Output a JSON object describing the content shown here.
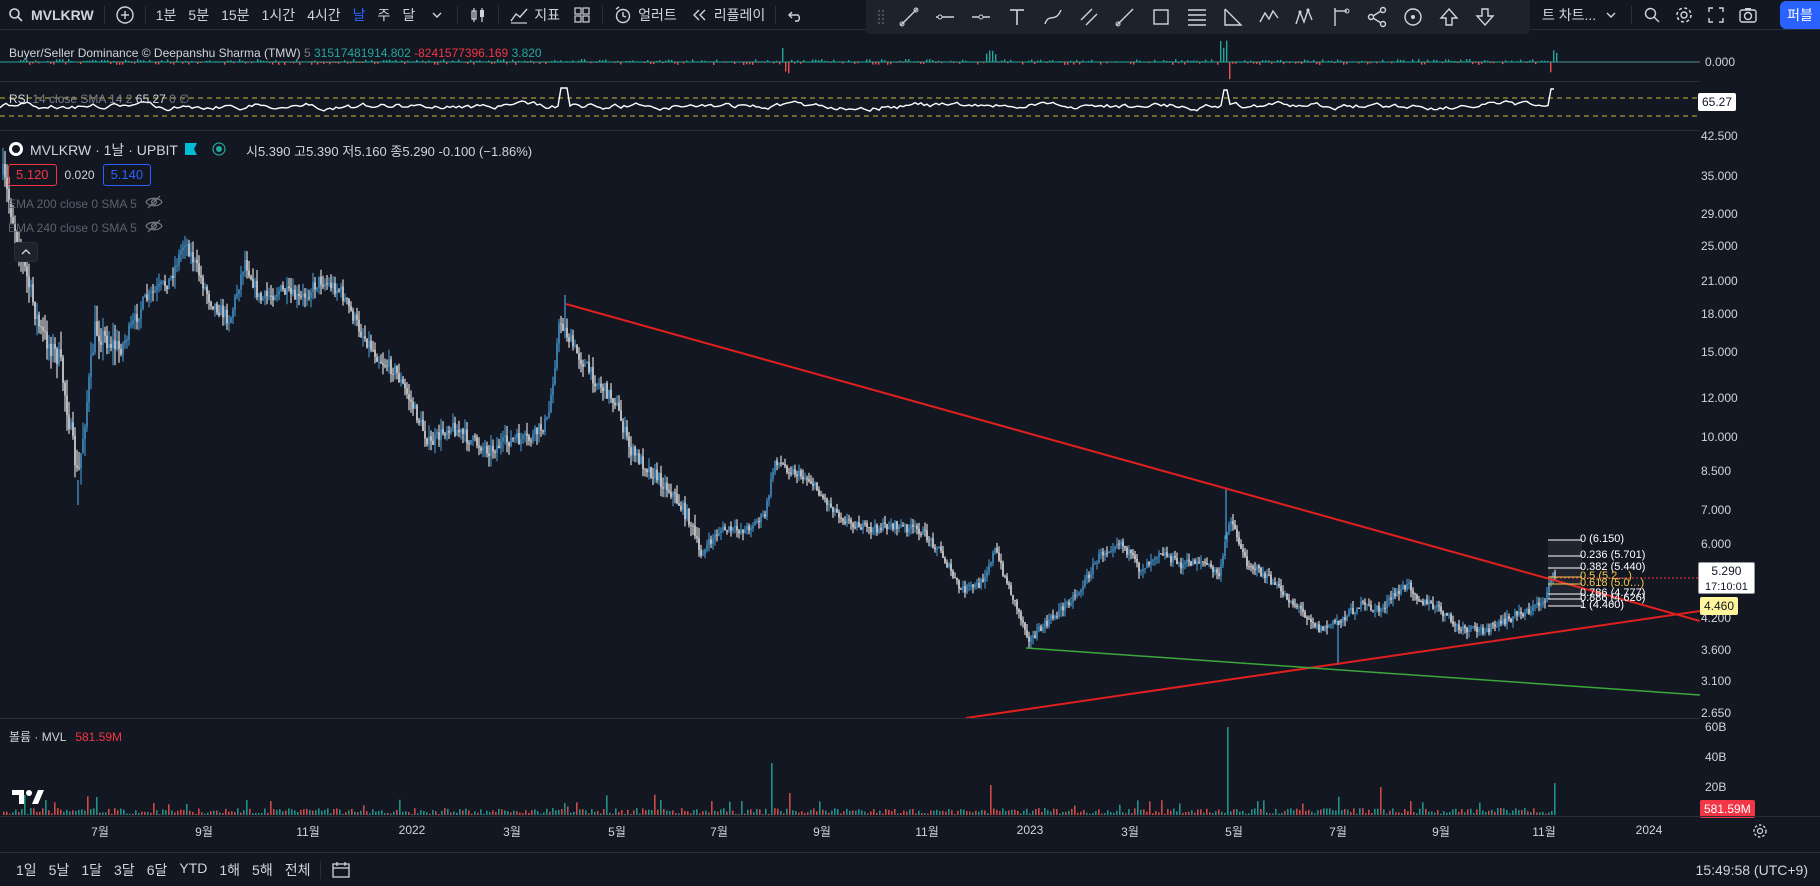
{
  "toolbar": {
    "symbol": "MVLKRW",
    "intervals": [
      "1분",
      "5분",
      "15분",
      "1시간",
      "4시간",
      "날",
      "주",
      "달"
    ],
    "active_interval": "날",
    "indicators_label": "지표",
    "alert_label": "얼러트",
    "replay_label": "리플레이",
    "chart_menu_label": "트 차트...",
    "publish_label": "퍼블"
  },
  "tmw": {
    "title": "Buyer/Seller Dominance © Deepanshu Sharma (TMW)",
    "param": "5",
    "v1": "31517481914.802",
    "v2": "-8241577396.169",
    "v3": "3.820",
    "axis": "0.000"
  },
  "rsi": {
    "title": "RSI",
    "params": "14 close SMA 14 2",
    "value": "65.27",
    "extra": "0 ∅",
    "axis_tag": "65.27"
  },
  "main": {
    "symbol_line": "MVLKRW · 1날 · UPBIT",
    "open_label": "시",
    "open": "5.390",
    "high_label": "고",
    "high": "5.390",
    "low_label": "저",
    "low": "5.160",
    "close_label": "종",
    "close": "5.290",
    "change": "-0.100 (−1.86%)",
    "bid": "5.120",
    "spread": "0.020",
    "ask": "5.140",
    "ema200": "EMA 200 close 0 SMA 5",
    "ema240": "EMA 240 close 0 SMA 5",
    "price_tag": "5.290",
    "countdown": "17:10:01",
    "support_tag": "4.460"
  },
  "price_axis": [
    "42.500",
    "35.000",
    "29.000",
    "25.000",
    "21.000",
    "18.000",
    "15.000",
    "12.000",
    "10.000",
    "8.500",
    "7.000",
    "6.000",
    "5.000",
    "4.200",
    "3.600",
    "3.100",
    "2.650"
  ],
  "fib": [
    {
      "label": "0 (6.150)",
      "price": 6.15
    },
    {
      "label": "0.236 (5.701)",
      "price": 5.701
    },
    {
      "label": "0.382 (5.440)",
      "price": 5.44
    },
    {
      "label": "0.5 (5.2…)",
      "price": 5.25
    },
    {
      "label": "0.618 (5.0…)",
      "price": 5.05
    },
    {
      "label": "0.786 (4.777)",
      "price": 4.777
    },
    {
      "label": "0.886 (4.626)",
      "price": 4.626
    },
    {
      "label": "1 (4.460)",
      "price": 4.46
    }
  ],
  "volume": {
    "title": "볼륨 · MVL",
    "value": "581.59M",
    "axis": [
      "60B",
      "40B",
      "20B"
    ],
    "tag": "581.59M"
  },
  "time_axis": [
    "7월",
    "9월",
    "11월",
    "2022",
    "3월",
    "5월",
    "7월",
    "9월",
    "11월",
    "2023",
    "3월",
    "5월",
    "7월",
    "9월",
    "11월",
    "2024"
  ],
  "ranges": [
    "1일",
    "5날",
    "1달",
    "3달",
    "6달",
    "YTD",
    "1해",
    "5해",
    "전체"
  ],
  "clock": "15:49:58 (UTC+9)",
  "colors": {
    "background": "#131722",
    "candle": "#4aa3df",
    "trend_red": "#e0201e",
    "trend_green": "#3ca83c",
    "vol_up": "#26a69a",
    "vol_down": "#ef5350"
  }
}
